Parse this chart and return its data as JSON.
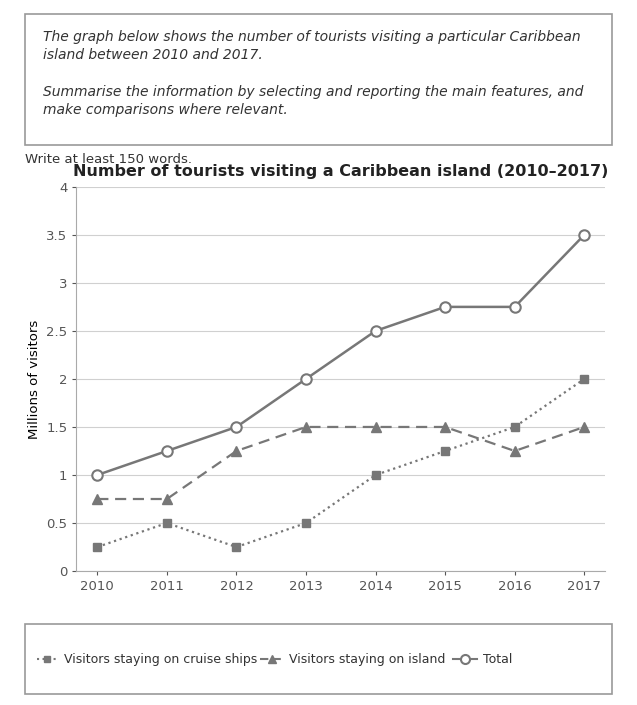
{
  "title": "Number of tourists visiting a Caribbean island (2010–2017)",
  "prompt_line1": "The graph below shows the number of tourists visiting a particular Caribbean",
  "prompt_line2": "island between 2010 and 2017.",
  "prompt_line3": "Summarise the information by selecting and reporting the main features, and",
  "prompt_line4": "make comparisons where relevant.",
  "write_text": "Write at least 150 words.",
  "years": [
    2010,
    2011,
    2012,
    2013,
    2014,
    2015,
    2016,
    2017
  ],
  "cruise_ships": [
    0.25,
    0.5,
    0.25,
    0.5,
    1.0,
    1.25,
    1.5,
    2.0
  ],
  "on_island": [
    0.75,
    0.75,
    1.25,
    1.5,
    1.5,
    1.5,
    1.25,
    1.5
  ],
  "total": [
    1.0,
    1.25,
    1.5,
    2.0,
    2.5,
    2.75,
    2.75,
    3.5
  ],
  "ylabel": "Millions of visitors",
  "ylim": [
    0,
    4
  ],
  "yticks": [
    0,
    0.5,
    1.0,
    1.5,
    2.0,
    2.5,
    3.0,
    3.5,
    4.0
  ],
  "ytick_labels": [
    "0",
    "0.5",
    "1",
    "1.5",
    "2",
    "2.5",
    "3",
    "3.5",
    "4"
  ],
  "line_color": "#777777",
  "grid_color": "#d0d0d0",
  "legend_cruise_label": "Visitors staying on cruise ships",
  "legend_island_label": "Visitors staying on island",
  "legend_total_label": "Total",
  "title_fontsize": 11.5,
  "axis_fontsize": 9.5,
  "legend_fontsize": 9,
  "prompt_fontsize": 10
}
